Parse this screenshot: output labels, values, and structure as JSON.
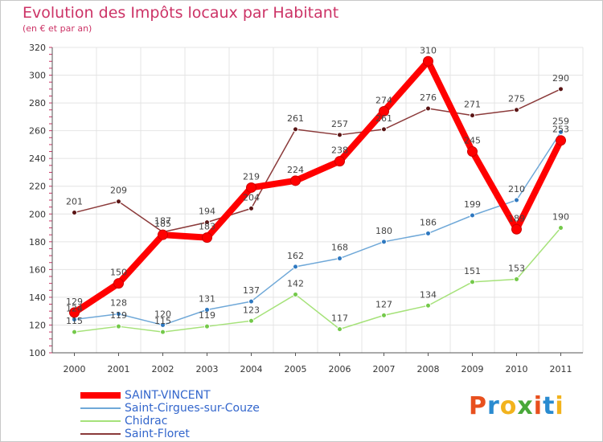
{
  "chart_data": {
    "type": "line",
    "title": "Evolution des Impôts locaux par Habitant",
    "subtitle": "(en € et par an)",
    "x": [
      "2000",
      "2001",
      "2002",
      "2003",
      "2004",
      "2005",
      "2006",
      "2007",
      "2008",
      "2009",
      "2010",
      "2011"
    ],
    "ylim": [
      100,
      320
    ],
    "yticks": [
      100,
      120,
      140,
      160,
      180,
      200,
      220,
      240,
      260,
      280,
      300,
      320
    ],
    "grid": true,
    "legend_position": "bottom-left",
    "series": [
      {
        "name": "SAINT-VINCENT",
        "color": "#ff0000",
        "values": [
          129,
          150,
          185,
          183,
          219,
          224,
          238,
          274,
          310,
          245,
          189,
          253
        ]
      },
      {
        "name": "Saint-Cirgues-sur-Couze",
        "color": "#6fa8d8",
        "values": [
          124,
          128,
          120,
          131,
          137,
          162,
          168,
          180,
          186,
          199,
          210,
          259
        ]
      },
      {
        "name": "Chidrac",
        "color": "#a6e27a",
        "values": [
          115,
          119,
          115,
          119,
          123,
          142,
          117,
          127,
          134,
          151,
          153,
          190
        ]
      },
      {
        "name": "Saint-Floret",
        "color": "#8b3a3a",
        "values": [
          201,
          209,
          187,
          194,
          204,
          261,
          257,
          261,
          276,
          271,
          275,
          290
        ]
      }
    ],
    "logo_text": "Proxiti"
  }
}
